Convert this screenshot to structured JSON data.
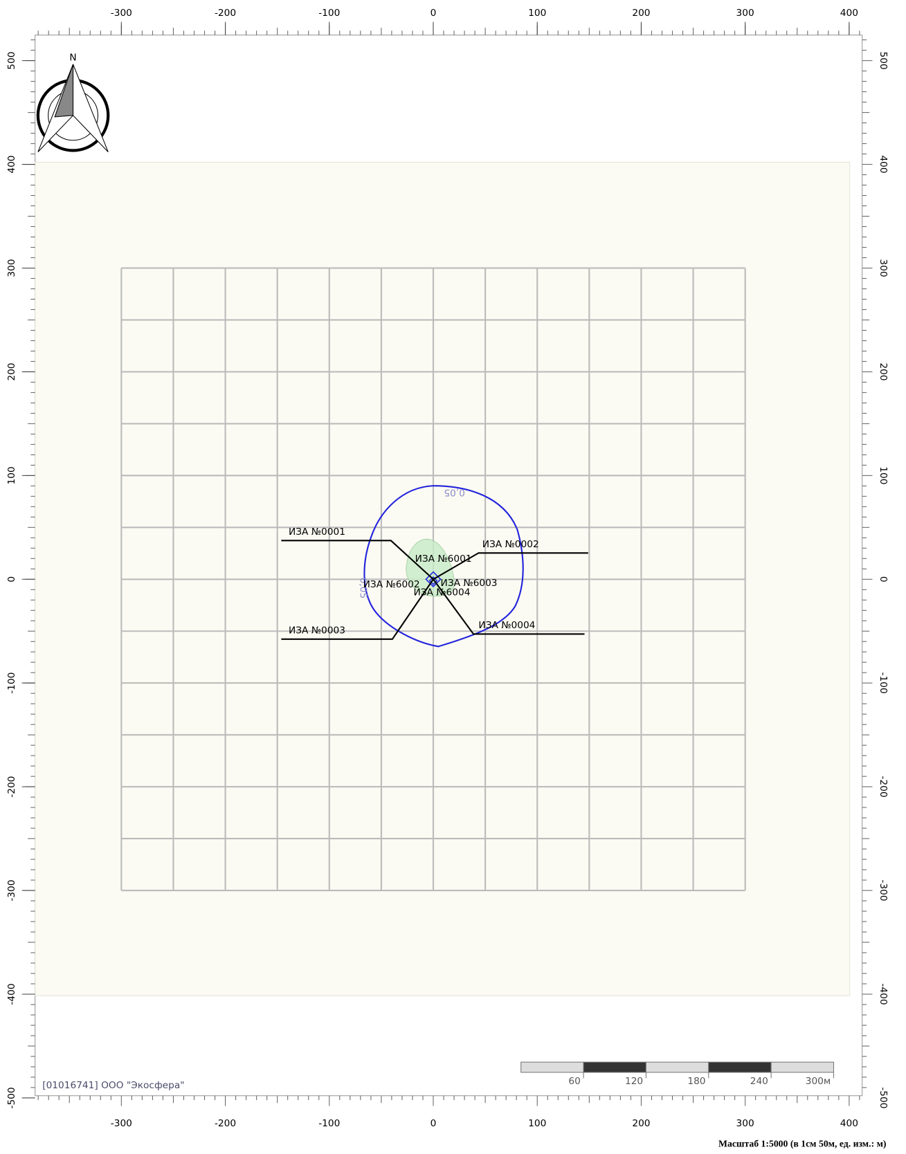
{
  "map": {
    "north_label": "N",
    "x_ticks": [
      -300,
      -200,
      -100,
      0,
      100,
      200,
      300,
      400
    ],
    "y_ticks": [
      500,
      400,
      300,
      200,
      100,
      0,
      -100,
      -200,
      -300,
      -400,
      -500
    ],
    "grid": {
      "xlim": [
        -300,
        300
      ],
      "ylim": [
        -300,
        300
      ],
      "step": 50
    },
    "isoline_label": "0,05",
    "sources": [
      "ИЗА №0001",
      "ИЗА №0002",
      "ИЗА №0003",
      "ИЗА №0004",
      "ИЗА №6001",
      "ИЗА №6002",
      "ИЗА №6003",
      "ИЗА №6004"
    ],
    "company": "[01016741] ООО \"Экосфера\"",
    "scale_bar": [
      "60",
      "120",
      "180",
      "240",
      "300м"
    ],
    "caption": "Масштаб 1:5000 (в 1см 50м, ед. изм.: м)"
  }
}
